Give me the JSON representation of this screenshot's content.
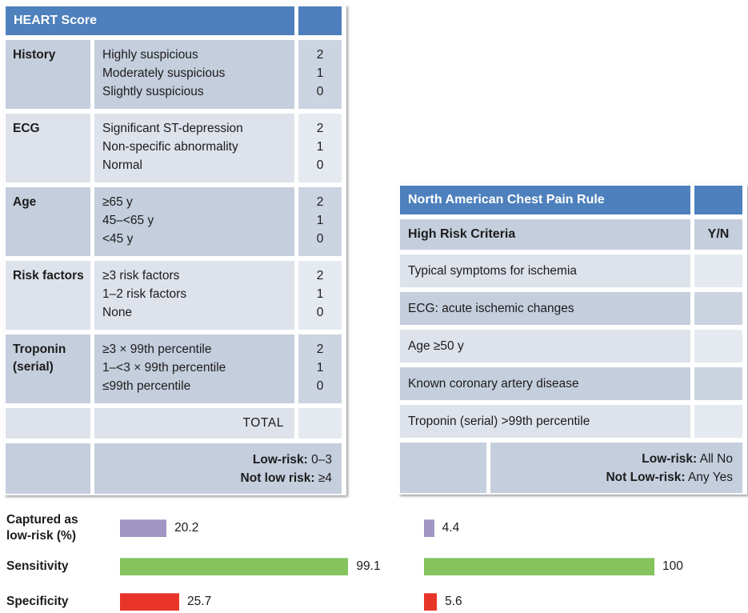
{
  "colors": {
    "header_blue": "#4d80bc",
    "row_dark": "#c5cedd",
    "row_light": "#dde2eb",
    "bar_purple": "#a195c4",
    "bar_green": "#85c35d",
    "bar_red": "#e93529",
    "text": "#1c1c1c"
  },
  "heart_table": {
    "title": "HEART Score",
    "rows": [
      {
        "label": "History",
        "options": [
          "Highly suspicious",
          "Moderately suspicious",
          "Slightly suspicious"
        ],
        "points": [
          "2",
          "1",
          "0"
        ]
      },
      {
        "label": "ECG",
        "options": [
          "Significant ST-depression",
          "Non-specific abnormality",
          "Normal"
        ],
        "points": [
          "2",
          "1",
          "0"
        ]
      },
      {
        "label": "Age",
        "options": [
          "≥65 y",
          "45–<65 y",
          "<45 y"
        ],
        "points": [
          "2",
          "1",
          "0"
        ]
      },
      {
        "label": "Risk factors",
        "options": [
          "≥3 risk factors",
          "1–2 risk factors",
          "None"
        ],
        "points": [
          "2",
          "1",
          "0"
        ]
      },
      {
        "label": "Troponin (serial)",
        "options": [
          "≥3 × 99th percentile",
          "1–<3 × 99th percentile",
          "≤99th percentile"
        ],
        "points": [
          "2",
          "1",
          "0"
        ]
      }
    ],
    "total_label": "TOTAL",
    "footer": [
      {
        "label": "Low-risk:",
        "value": " 0–3"
      },
      {
        "label": "Not low risk:",
        "value": " ≥4"
      }
    ]
  },
  "nacpr_table": {
    "title": "North American Chest Pain Rule",
    "criteria_header": "High Risk Criteria",
    "yn_header": "Y/N",
    "criteria": [
      "Typical symptoms for ischemia",
      "ECG: acute ischemic changes",
      "Age ≥50 y",
      "Known coronary artery disease",
      "Troponin (serial) >99th percentile"
    ],
    "footer": [
      {
        "label": "Low-risk:",
        "value": " All No"
      },
      {
        "label": "Not Low-risk:",
        "value": " Any Yes"
      }
    ]
  },
  "chart_data": {
    "type": "bar",
    "orientation": "horizontal",
    "title": "",
    "xlabel": "",
    "ylabel": "",
    "xlim": [
      0,
      100
    ],
    "grid": false,
    "legend": "none (columns aligned under the two rule tables)",
    "metrics": [
      "Captured as low-risk (%)",
      "Sensitivity",
      "Specificity"
    ],
    "metric_label_lines": [
      [
        "Captured as",
        "low-risk (%)"
      ],
      [
        "Sensitivity"
      ],
      [
        "Specificity"
      ]
    ],
    "bar_colors": [
      "#a195c4",
      "#85c35d",
      "#e93529"
    ],
    "series": [
      {
        "name": "HEART Score",
        "values": [
          20.2,
          99.1,
          25.7
        ]
      },
      {
        "name": "North American Chest Pain Rule",
        "values": [
          4.4,
          100,
          5.6
        ]
      }
    ]
  }
}
